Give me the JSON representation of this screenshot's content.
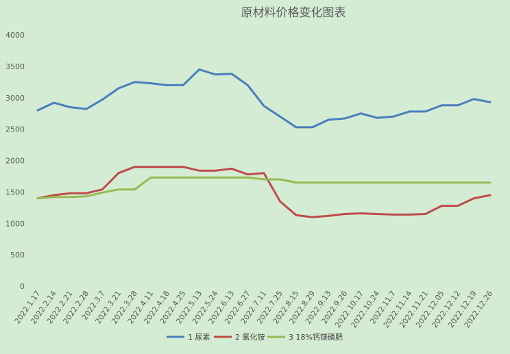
{
  "chart_data": {
    "type": "line",
    "title": "原材料价格变化图表",
    "xlabel": "",
    "ylabel": "",
    "categories": [
      "2022.1.17",
      "2022.2.14",
      "2022.2.21",
      "2022.2.28",
      "2022.3.7",
      "2022.3.21",
      "2022.3.28",
      "2022.4.11",
      "2022.4.18",
      "2022.4.25",
      "2022.5.13",
      "2022.5.24",
      "2022.6.13",
      "2022.6.27",
      "2022.7.11",
      "2022.7.25",
      "2022.8.15",
      "2022.8.29",
      "2022.9.13",
      "2022.9.26",
      "2022.10.17",
      "2022.10.24",
      "2022.11.7",
      "2022.11.14",
      "2022.11.21",
      "2022.12.05",
      "2022.12.12",
      "2022.12.19",
      "2022.12.26"
    ],
    "ylim": [
      0,
      4000
    ],
    "yticks": [
      0,
      500,
      1000,
      1500,
      2000,
      2500,
      3000,
      3500,
      4000
    ],
    "grid": false,
    "legend_position": "bottom",
    "series": [
      {
        "name": "1 尿素",
        "color": "#4a7ebb",
        "values": [
          2800,
          2920,
          2850,
          2820,
          2970,
          3150,
          3250,
          3230,
          3200,
          3200,
          3450,
          3370,
          3380,
          3200,
          2870,
          2700,
          2530,
          2530,
          2650,
          2670,
          2750,
          2680,
          2700,
          2780,
          2780,
          2880,
          2880,
          2980,
          2930
        ]
      },
      {
        "name": "2 氯化铵",
        "color": "#be4b48",
        "values": [
          1400,
          1450,
          1480,
          1480,
          1540,
          1800,
          1900,
          1900,
          1900,
          1900,
          1840,
          1840,
          1870,
          1780,
          1800,
          1350,
          1130,
          1100,
          1120,
          1150,
          1160,
          1150,
          1140,
          1140,
          1150,
          1280,
          1280,
          1400,
          1450
        ]
      },
      {
        "name": "3 18%钙镁磷肥",
        "color": "#98b954",
        "values": [
          1400,
          1420,
          1420,
          1430,
          1490,
          1540,
          1540,
          1730,
          1730,
          1730,
          1730,
          1730,
          1730,
          1730,
          1700,
          1700,
          1650,
          1650,
          1650,
          1650,
          1650,
          1650,
          1650,
          1650,
          1650,
          1650,
          1650,
          1650,
          1650
        ]
      }
    ]
  }
}
